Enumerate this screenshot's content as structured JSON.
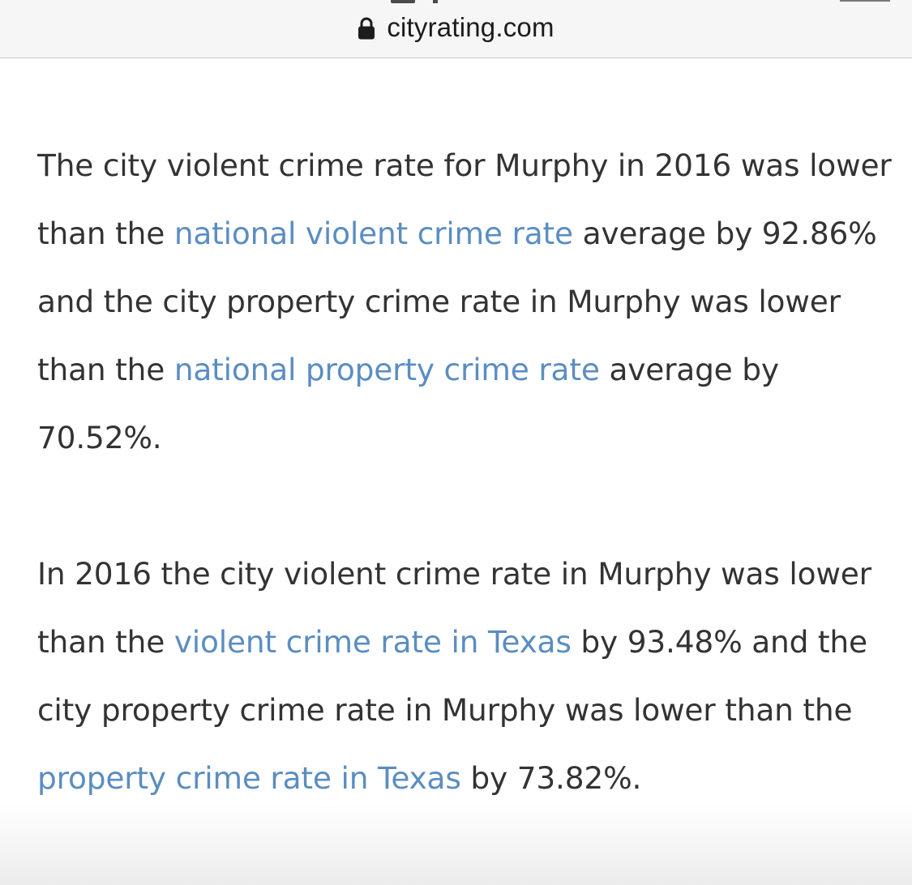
{
  "browser": {
    "url": "cityrating.com",
    "lock_icon": "lock-icon"
  },
  "paragraphs": [
    {
      "t1": "The city violent crime rate for Murphy in 2016 was lower than the ",
      "link1": "national violent crime rate",
      "t2": " average by 92.86% and the city property crime rate in Murphy was lower than the ",
      "link2": "national property crime rate",
      "t3": " average by 70.52%."
    },
    {
      "t1": "In 2016 the city violent crime rate in Murphy was lower than the ",
      "link1": "violent crime rate in Texas",
      "t2": " by 93.48% and the city property crime rate in Murphy was lower than the ",
      "link2": "property crime rate in Texas",
      "t3": " by 73.82%."
    }
  ],
  "colors": {
    "link": "#5b8dc2",
    "text": "#333333"
  }
}
